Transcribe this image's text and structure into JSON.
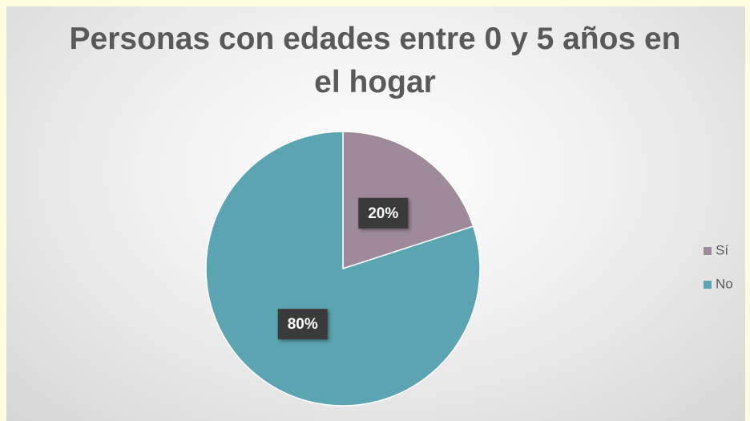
{
  "chart_data": {
    "type": "pie",
    "title": "Personas con edades entre 0 y 5 años en el hogar",
    "categories": [
      "Sí",
      "No"
    ],
    "values": [
      20,
      80
    ],
    "value_labels": [
      "20%",
      "80%"
    ],
    "colors": [
      "#9e8a9b",
      "#5ba4b1"
    ],
    "legend": "right"
  }
}
